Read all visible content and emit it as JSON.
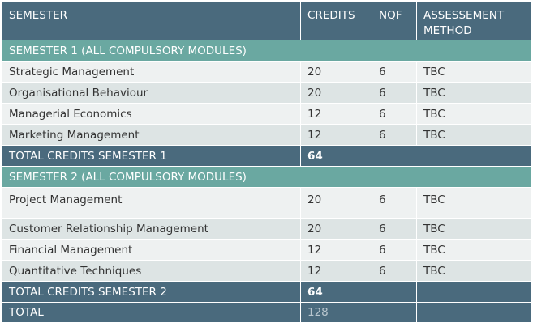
{
  "header": {
    "col1": "SEMESTER",
    "col2": "CREDITS",
    "col3": "NQF",
    "col4": "ASSESSEMENT METHOD"
  },
  "semester1": {
    "title": "SEMESTER 1 (ALL COMPULSORY MODULES)",
    "rows": [
      {
        "module": "Strategic Management",
        "credits": "20",
        "nqf": "6",
        "method": "TBC"
      },
      {
        "module": "Organisational Behaviour",
        "credits": "20",
        "nqf": "6",
        "method": "TBC"
      },
      {
        "module": "Managerial Economics",
        "credits": "12",
        "nqf": "6",
        "method": "TBC"
      },
      {
        "module": "Marketing Management",
        "credits": "12",
        "nqf": "6",
        "method": "TBC"
      }
    ],
    "total_label": "TOTAL CREDITS SEMESTER 1",
    "total_value": "64"
  },
  "semester2": {
    "title": "SEMESTER 2 (ALL COMPULSORY MODULES)",
    "rows": [
      {
        "module": "Project Management",
        "credits": "20",
        "nqf": "6",
        "method": "TBC"
      },
      {
        "module": "Customer Relationship Management",
        "credits": "20",
        "nqf": "6",
        "method": "TBC"
      },
      {
        "module": "Financial Management",
        "credits": "12",
        "nqf": "6",
        "method": "TBC"
      },
      {
        "module": "Quantitative Techniques",
        "credits": "12",
        "nqf": "6",
        "method": "TBC"
      }
    ],
    "total_label": "TOTAL CREDITS SEMESTER 2",
    "total_value": "64"
  },
  "grand_total": {
    "label": "TOTAL",
    "value": "128"
  },
  "colors": {
    "header": "#4a6a7d",
    "section": "#6aa8a1",
    "row_light": "#eef1f1",
    "row_dark": "#dde4e4"
  }
}
